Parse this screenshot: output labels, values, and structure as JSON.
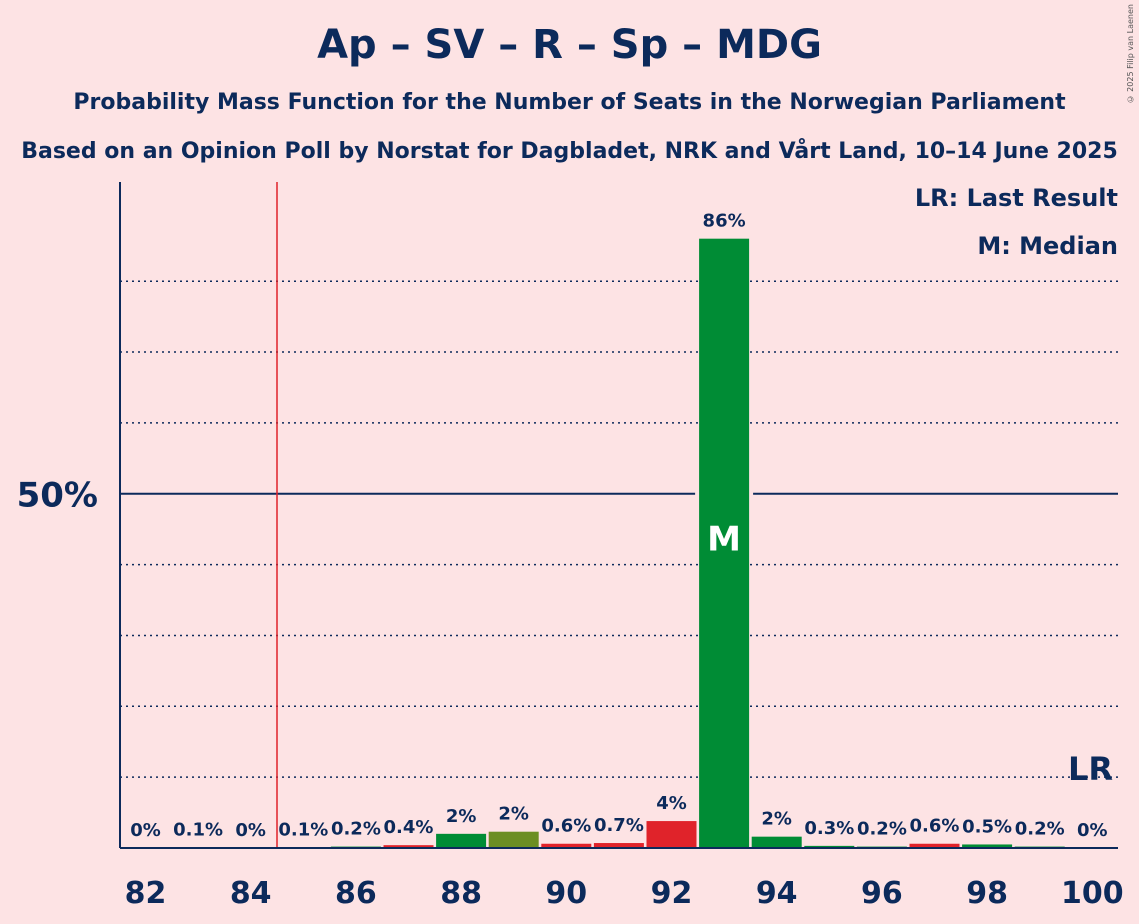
{
  "title": "Ap – SV – R – Sp – MDG",
  "subtitle1": "Probability Mass Function for the Number of Seats in the Norwegian Parliament",
  "subtitle2": "Based on an Opinion Poll by Norstat for Dagbladet, NRK and Vårt Land, 10–14 June 2025",
  "copyright": "© 2025 Filip van Laenen",
  "legend": {
    "lr": "LR: Last Result",
    "median": "M: Median"
  },
  "colors": {
    "background": "#fde3e4",
    "axis": "#0c2a5b",
    "last_result_line": "#e0232a",
    "green": "#008c35",
    "olive": "#6b8e23",
    "red": "#e0232a"
  },
  "chart_data": {
    "type": "bar",
    "title": "Ap – SV – R – Sp – MDG",
    "xlabel": "",
    "ylabel": "",
    "ylim": [
      0,
      94
    ],
    "y_major_tick": 50,
    "y_major_label": "50%",
    "y_minor_ticks": [
      10,
      20,
      30,
      40,
      60,
      70,
      80
    ],
    "x_tick_labels": [
      "82",
      "84",
      "86",
      "88",
      "90",
      "92",
      "94",
      "96",
      "98",
      "100"
    ],
    "last_result": 84.5,
    "last_result_label": "LR",
    "median": 93,
    "median_label": "M",
    "bars": [
      {
        "seats": 82,
        "value": 0.0,
        "label": "0%",
        "color": "#008c35"
      },
      {
        "seats": 83,
        "value": 0.1,
        "label": "0.1%",
        "color": "#008c35"
      },
      {
        "seats": 84,
        "value": 0.0,
        "label": "0%",
        "color": "#008c35"
      },
      {
        "seats": 85,
        "value": 0.1,
        "label": "0.1%",
        "color": "#008c35"
      },
      {
        "seats": 86,
        "value": 0.2,
        "label": "0.2%",
        "color": "#008c35"
      },
      {
        "seats": 87,
        "value": 0.4,
        "label": "0.4%",
        "color": "#e0232a"
      },
      {
        "seats": 88,
        "value": 2.0,
        "label": "2%",
        "color": "#008c35"
      },
      {
        "seats": 89,
        "value": 2.3,
        "label": "2%",
        "color": "#6b8e23"
      },
      {
        "seats": 90,
        "value": 0.6,
        "label": "0.6%",
        "color": "#e0232a"
      },
      {
        "seats": 91,
        "value": 0.7,
        "label": "0.7%",
        "color": "#e0232a"
      },
      {
        "seats": 92,
        "value": 3.8,
        "label": "4%",
        "color": "#e0232a"
      },
      {
        "seats": 93,
        "value": 86.0,
        "label": "86%",
        "color": "#008c35"
      },
      {
        "seats": 94,
        "value": 1.6,
        "label": "2%",
        "color": "#008c35"
      },
      {
        "seats": 95,
        "value": 0.3,
        "label": "0.3%",
        "color": "#008c35"
      },
      {
        "seats": 96,
        "value": 0.2,
        "label": "0.2%",
        "color": "#008c35"
      },
      {
        "seats": 97,
        "value": 0.6,
        "label": "0.6%",
        "color": "#e0232a"
      },
      {
        "seats": 98,
        "value": 0.5,
        "label": "0.5%",
        "color": "#008c35"
      },
      {
        "seats": 99,
        "value": 0.2,
        "label": "0.2%",
        "color": "#008c35"
      },
      {
        "seats": 100,
        "value": 0.0,
        "label": "0%",
        "color": "#008c35"
      }
    ]
  }
}
